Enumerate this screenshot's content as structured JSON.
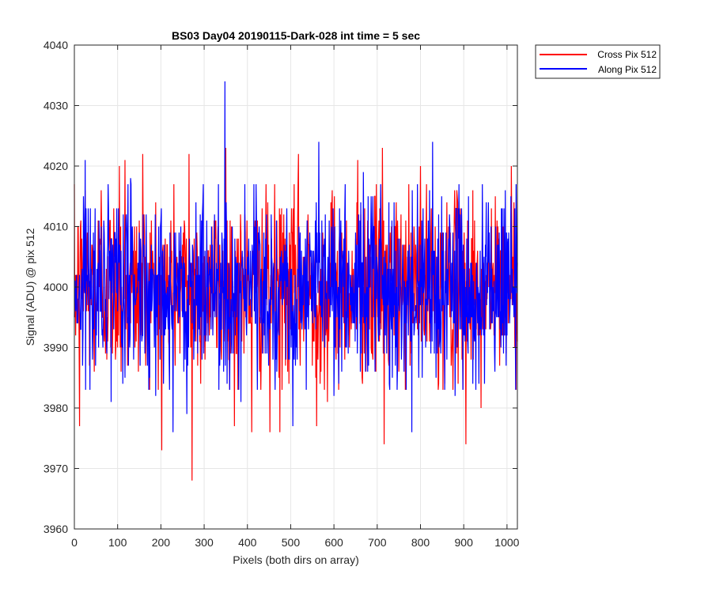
{
  "chart_data": {
    "type": "line",
    "title": "BS03 Day04 20190115-Dark-028 int time = 5 sec",
    "xlabel": "Pixels (both dirs on array)",
    "ylabel": "Signal (ADU) @ pix 512",
    "xlim": [
      0,
      1024
    ],
    "ylim": [
      3960,
      4040
    ],
    "x_ticks": [
      0,
      100,
      200,
      300,
      400,
      500,
      600,
      700,
      800,
      900,
      1000
    ],
    "y_ticks": [
      3960,
      3970,
      3980,
      3990,
      4000,
      4010,
      4020,
      4030,
      4040
    ],
    "grid": true,
    "legend_position": "outside top-right",
    "series": [
      {
        "name": "Cross Pix 512",
        "color": "#ff0000",
        "noise_summary": {
          "mean": 4000,
          "typical_range": [
            3985,
            4015
          ]
        },
        "peaks": [
          {
            "x": 12,
            "y": 3977
          },
          {
            "x": 25,
            "y": 4016
          },
          {
            "x": 62,
            "y": 4016
          },
          {
            "x": 104,
            "y": 4020
          },
          {
            "x": 117,
            "y": 4021
          },
          {
            "x": 158,
            "y": 4022
          },
          {
            "x": 202,
            "y": 3973
          },
          {
            "x": 265,
            "y": 4022
          },
          {
            "x": 272,
            "y": 3968
          },
          {
            "x": 350,
            "y": 4023
          },
          {
            "x": 370,
            "y": 3977
          },
          {
            "x": 410,
            "y": 3976
          },
          {
            "x": 452,
            "y": 3976
          },
          {
            "x": 475,
            "y": 3976
          },
          {
            "x": 518,
            "y": 4022
          },
          {
            "x": 560,
            "y": 3977
          },
          {
            "x": 585,
            "y": 3981
          },
          {
            "x": 655,
            "y": 4021
          },
          {
            "x": 712,
            "y": 4023
          },
          {
            "x": 716,
            "y": 3974
          },
          {
            "x": 800,
            "y": 4020
          },
          {
            "x": 905,
            "y": 3974
          },
          {
            "x": 940,
            "y": 3980
          },
          {
            "x": 1010,
            "y": 4020
          }
        ]
      },
      {
        "name": "Along Pix 512",
        "color": "#0000ff",
        "noise_summary": {
          "mean": 4000,
          "typical_range": [
            3985,
            4015
          ]
        },
        "peaks": [
          {
            "x": 25,
            "y": 4021
          },
          {
            "x": 85,
            "y": 3981
          },
          {
            "x": 130,
            "y": 4018
          },
          {
            "x": 188,
            "y": 3982
          },
          {
            "x": 228,
            "y": 3976
          },
          {
            "x": 260,
            "y": 3979
          },
          {
            "x": 333,
            "y": 4017
          },
          {
            "x": 348,
            "y": 4034
          },
          {
            "x": 385,
            "y": 3981
          },
          {
            "x": 423,
            "y": 3983
          },
          {
            "x": 505,
            "y": 3977
          },
          {
            "x": 565,
            "y": 4024
          },
          {
            "x": 600,
            "y": 3982
          },
          {
            "x": 668,
            "y": 4019
          },
          {
            "x": 780,
            "y": 3976
          },
          {
            "x": 828,
            "y": 4024
          },
          {
            "x": 880,
            "y": 3982
          },
          {
            "x": 972,
            "y": 3986
          },
          {
            "x": 1020,
            "y": 3983
          }
        ]
      }
    ]
  }
}
